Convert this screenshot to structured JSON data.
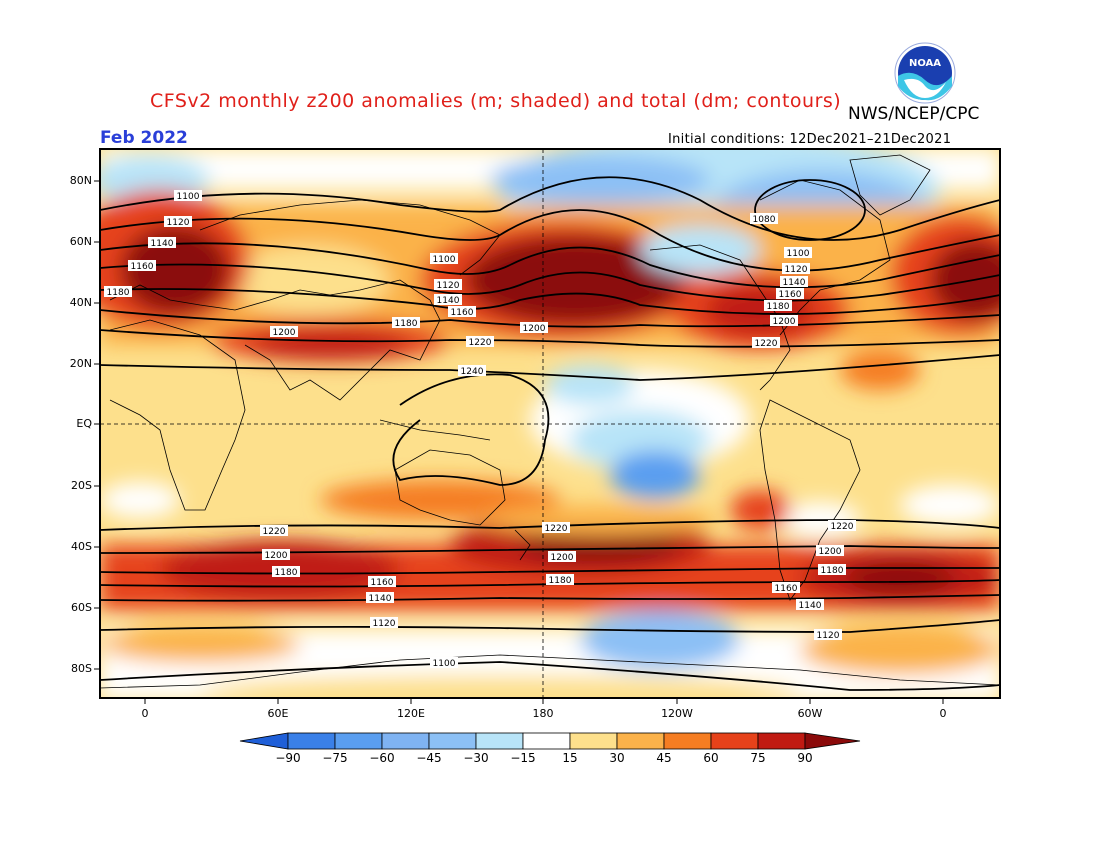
{
  "header": {
    "title": "CFSv2 monthly z200 anomalies (m; shaded) and total (dm; contours)",
    "credit": "NWS/NCEP/CPC",
    "month": "Feb 2022",
    "initial_conditions": "Initial conditions: 12Dec2021–21Dec2021",
    "logo_text": "NOAA"
  },
  "axes": {
    "lat_labels": [
      "80N",
      "60N",
      "40N",
      "20N",
      "EQ",
      "20S",
      "40S",
      "60S",
      "80S"
    ],
    "lon_labels": [
      "0",
      "60E",
      "120E",
      "180",
      "120W",
      "60W",
      "0"
    ]
  },
  "colorbar": {
    "labels": [
      "−90",
      "−75",
      "−60",
      "−45",
      "−30",
      "−15",
      "15",
      "30",
      "45",
      "60",
      "75",
      "90"
    ],
    "colors": [
      "#1f5fd8",
      "#3a80e8",
      "#5a9ef0",
      "#8cc0f5",
      "#b8e4f8",
      "#ffffff",
      "#fde08c",
      "#fbb24a",
      "#f57d22",
      "#e6421a",
      "#c01a12",
      "#8b0a0a"
    ]
  },
  "contour_labels": {
    "north": [
      "1100",
      "1120",
      "1140",
      "1160",
      "1180",
      "1200",
      "1220",
      "1240",
      "1080"
    ],
    "south": [
      "1220",
      "1200",
      "1180",
      "1160",
      "1140",
      "1120",
      "1100"
    ]
  }
}
